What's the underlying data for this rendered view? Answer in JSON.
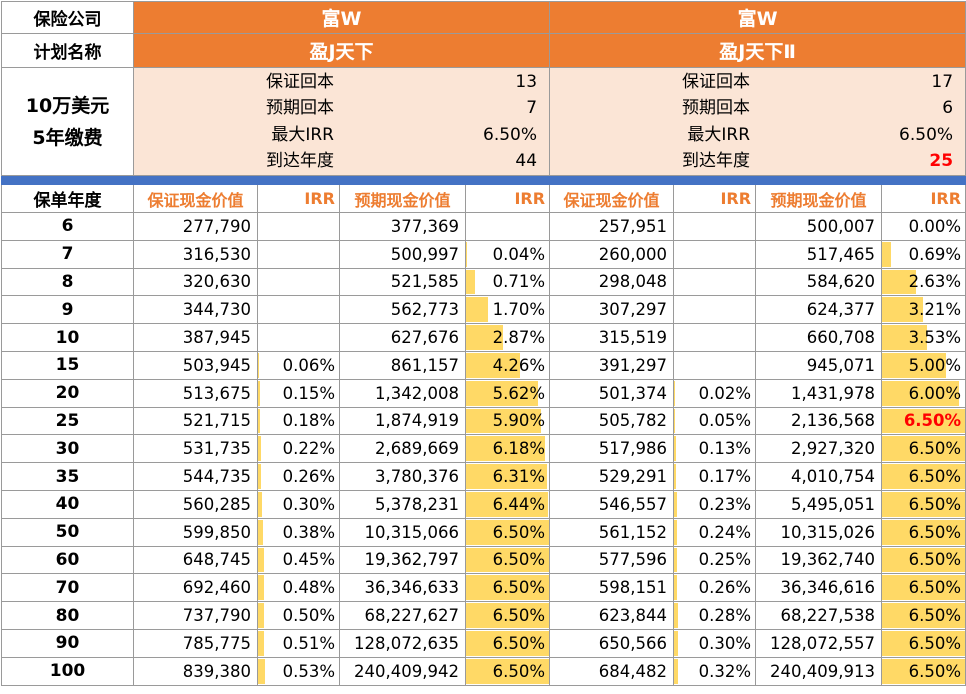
{
  "labels": {
    "company": "保险公司",
    "plan": "计划名称",
    "amount": "10万美元",
    "payment": "5年缴费",
    "year_col": "保单年度"
  },
  "summary_keys": [
    "保证回本",
    "预期回本",
    "最大IRR",
    "到达年度"
  ],
  "plans": [
    {
      "company": "富W",
      "name": "盈J天下",
      "summary": [
        "13",
        "7",
        "6.50%",
        "44"
      ],
      "highlight_last": false
    },
    {
      "company": "富W",
      "name": "盈J天下Ⅱ",
      "summary": [
        "17",
        "6",
        "6.50%",
        "25"
      ],
      "highlight_last": true
    }
  ],
  "columns": [
    "保证现金价值",
    "IRR",
    "预期现金价值",
    "IRR",
    "保证现金价值",
    "IRR",
    "预期现金价值",
    "IRR"
  ],
  "colors": {
    "orange": "#ed7d31",
    "peach": "#fbe5d6",
    "blue": "#4472c4",
    "bar": "#ffd966",
    "red": "#ff0000"
  },
  "rows": [
    {
      "year": "6",
      "c": [
        "277,790",
        "",
        "377,369",
        "",
        "257,951",
        "",
        "500,007",
        "0.00%"
      ]
    },
    {
      "year": "7",
      "c": [
        "316,530",
        "",
        "500,997",
        "0.04%",
        "260,000",
        "",
        "517,465",
        "0.69%"
      ]
    },
    {
      "year": "8",
      "c": [
        "320,630",
        "",
        "521,585",
        "0.71%",
        "298,048",
        "",
        "584,620",
        "2.63%"
      ]
    },
    {
      "year": "9",
      "c": [
        "344,730",
        "",
        "562,773",
        "1.70%",
        "307,297",
        "",
        "624,377",
        "3.21%"
      ]
    },
    {
      "year": "10",
      "c": [
        "387,945",
        "",
        "627,676",
        "2.87%",
        "315,519",
        "",
        "660,708",
        "3.53%"
      ]
    },
    {
      "year": "15",
      "c": [
        "503,945",
        "0.06%",
        "861,157",
        "4.26%",
        "391,297",
        "",
        "945,071",
        "5.00%"
      ]
    },
    {
      "year": "20",
      "c": [
        "513,675",
        "0.15%",
        "1,342,008",
        "5.62%",
        "501,374",
        "0.02%",
        "1,431,978",
        "6.00%"
      ]
    },
    {
      "year": "25",
      "c": [
        "521,715",
        "0.18%",
        "1,874,919",
        "5.90%",
        "505,782",
        "0.05%",
        "2,136,568",
        "6.50%"
      ],
      "red": 7
    },
    {
      "year": "30",
      "c": [
        "531,735",
        "0.22%",
        "2,689,669",
        "6.18%",
        "517,986",
        "0.13%",
        "2,927,320",
        "6.50%"
      ]
    },
    {
      "year": "35",
      "c": [
        "544,735",
        "0.26%",
        "3,780,376",
        "6.31%",
        "529,291",
        "0.17%",
        "4,010,754",
        "6.50%"
      ]
    },
    {
      "year": "40",
      "c": [
        "560,285",
        "0.30%",
        "5,378,231",
        "6.44%",
        "546,557",
        "0.23%",
        "5,495,051",
        "6.50%"
      ]
    },
    {
      "year": "50",
      "c": [
        "599,850",
        "0.38%",
        "10,315,066",
        "6.50%",
        "561,152",
        "0.24%",
        "10,315,026",
        "6.50%"
      ]
    },
    {
      "year": "60",
      "c": [
        "648,745",
        "0.45%",
        "19,362,797",
        "6.50%",
        "577,596",
        "0.25%",
        "19,362,740",
        "6.50%"
      ]
    },
    {
      "year": "70",
      "c": [
        "692,460",
        "0.48%",
        "36,346,633",
        "6.50%",
        "598,151",
        "0.26%",
        "36,346,616",
        "6.50%"
      ]
    },
    {
      "year": "80",
      "c": [
        "737,790",
        "0.50%",
        "68,227,627",
        "6.50%",
        "623,844",
        "0.28%",
        "68,227,538",
        "6.50%"
      ]
    },
    {
      "year": "90",
      "c": [
        "785,775",
        "0.51%",
        "128,072,635",
        "6.50%",
        "650,566",
        "0.30%",
        "128,072,557",
        "6.50%"
      ]
    },
    {
      "year": "100",
      "c": [
        "839,380",
        "0.53%",
        "240,409,942",
        "6.50%",
        "684,482",
        "0.32%",
        "240,409,913",
        "6.50%"
      ]
    }
  ]
}
